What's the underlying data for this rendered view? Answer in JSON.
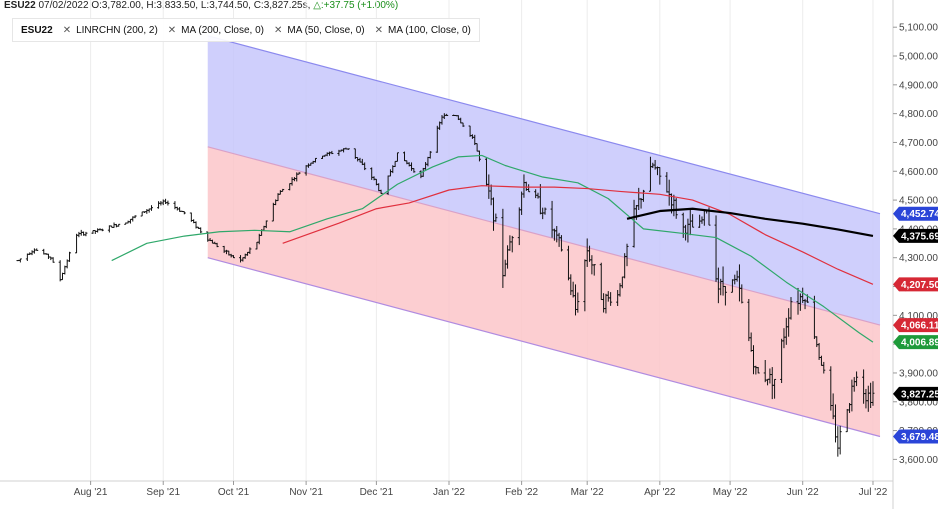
{
  "header": {
    "symbol": "ESU22",
    "date": "07/02/2022",
    "open": "O:3,782.00",
    "high": "H:3,833.50",
    "low": "L:3,744.50",
    "close": "C:3,827.25s",
    "change": "△:+37.75 (+1.00%)"
  },
  "legend": {
    "symbol": "ESU22",
    "items": [
      {
        "label": "LINRCHN (200, 2)",
        "close_icon": "close-icon"
      },
      {
        "label": "MA (200, Close, 0)",
        "close_icon": "close-icon"
      },
      {
        "label": "MA (50, Close, 0)",
        "close_icon": "close-icon"
      },
      {
        "label": "MA (100, Close, 0)",
        "close_icon": "close-icon"
      }
    ]
  },
  "chart_data": {
    "type": "ohlc-bar",
    "title": "",
    "xlabel": "",
    "ylabel": "",
    "ylim": [
      3525,
      5125
    ],
    "yticks": [
      3600,
      3700,
      3800,
      3900,
      4000,
      4100,
      4200,
      4300,
      4400,
      4500,
      4600,
      4700,
      4800,
      4900,
      5000,
      5100
    ],
    "ytick_labels": [
      "3,600.00",
      "3,700.00",
      "3,800.00",
      "3,900.00",
      "4,000.00",
      "4,100.00",
      "4,200.00",
      "4,300.00",
      "4,400.00",
      "4,500.00",
      "4,600.00",
      "4,700.00",
      "4,800.00",
      "4,900.00",
      "5,000.00",
      "5,100.00"
    ],
    "x_range": [
      "2021-07-01",
      "2022-07-04"
    ],
    "xticks": [
      {
        "date": "2021-08-01",
        "label": "Aug '21"
      },
      {
        "date": "2021-09-01",
        "label": "Sep '21"
      },
      {
        "date": "2021-10-01",
        "label": "Oct '21"
      },
      {
        "date": "2021-11-01",
        "label": "Nov '21"
      },
      {
        "date": "2021-12-01",
        "label": "Dec '21"
      },
      {
        "date": "2022-01-01",
        "label": "Jan '22"
      },
      {
        "date": "2022-02-01",
        "label": "Feb '22"
      },
      {
        "date": "2022-03-01",
        "label": "Mar '22"
      },
      {
        "date": "2022-04-01",
        "label": "Apr '22"
      },
      {
        "date": "2022-05-01",
        "label": "May '22"
      },
      {
        "date": "2022-06-01",
        "label": "Jun '22"
      },
      {
        "date": "2022-07-01",
        "label": "Jul '22"
      }
    ],
    "price_path": [
      [
        "2021-07-01",
        4290
      ],
      [
        "2021-07-08",
        4330
      ],
      [
        "2021-07-15",
        4300
      ],
      [
        "2021-07-19",
        4225
      ],
      [
        "2021-07-26",
        4380
      ],
      [
        "2021-08-05",
        4395
      ],
      [
        "2021-08-16",
        4425
      ],
      [
        "2021-08-26",
        4470
      ],
      [
        "2021-09-02",
        4495
      ],
      [
        "2021-09-10",
        4455
      ],
      [
        "2021-09-20",
        4365
      ],
      [
        "2021-09-30",
        4305
      ],
      [
        "2021-10-04",
        4290
      ],
      [
        "2021-10-11",
        4355
      ],
      [
        "2021-10-20",
        4520
      ],
      [
        "2021-11-01",
        4620
      ],
      [
        "2021-11-08",
        4655
      ],
      [
        "2021-11-19",
        4680
      ],
      [
        "2021-11-30",
        4570
      ],
      [
        "2021-12-03",
        4520
      ],
      [
        "2021-12-10",
        4660
      ],
      [
        "2021-12-20",
        4580
      ],
      [
        "2021-12-29",
        4790
      ],
      [
        "2022-01-04",
        4795
      ],
      [
        "2022-01-12",
        4700
      ],
      [
        "2022-01-20",
        4460
      ],
      [
        "2022-01-24",
        4250
      ],
      [
        "2022-02-02",
        4560
      ],
      [
        "2022-02-10",
        4470
      ],
      [
        "2022-02-18",
        4330
      ],
      [
        "2022-02-24",
        4120
      ],
      [
        "2022-03-01",
        4330
      ],
      [
        "2022-03-08",
        4150
      ],
      [
        "2022-03-14",
        4170
      ],
      [
        "2022-03-21",
        4450
      ],
      [
        "2022-03-29",
        4620
      ],
      [
        "2022-04-05",
        4520
      ],
      [
        "2022-04-11",
        4400
      ],
      [
        "2022-04-18",
        4410
      ],
      [
        "2022-04-21",
        4470
      ],
      [
        "2022-04-26",
        4200
      ],
      [
        "2022-05-04",
        4220
      ],
      [
        "2022-05-12",
        3900
      ],
      [
        "2022-05-20",
        3880
      ],
      [
        "2022-05-27",
        4150
      ],
      [
        "2022-06-02",
        4170
      ],
      [
        "2022-06-10",
        3900
      ],
      [
        "2022-06-16",
        3650
      ],
      [
        "2022-06-24",
        3910
      ],
      [
        "2022-06-28",
        3820
      ],
      [
        "2022-07-01",
        3827
      ]
    ],
    "ma200_path": [
      [
        "2022-03-18",
        4435
      ],
      [
        "2022-04-01",
        4462
      ],
      [
        "2022-04-15",
        4470
      ],
      [
        "2022-05-01",
        4455
      ],
      [
        "2022-05-16",
        4435
      ],
      [
        "2022-06-01",
        4418
      ],
      [
        "2022-06-16",
        4398
      ],
      [
        "2022-07-01",
        4375.69
      ]
    ],
    "ma100_path": [
      [
        "2021-10-22",
        4350
      ],
      [
        "2021-11-15",
        4420
      ],
      [
        "2021-12-01",
        4470
      ],
      [
        "2021-12-15",
        4490
      ],
      [
        "2022-01-01",
        4535
      ],
      [
        "2022-01-15",
        4550
      ],
      [
        "2022-02-01",
        4545
      ],
      [
        "2022-02-15",
        4545
      ],
      [
        "2022-03-01",
        4540
      ],
      [
        "2022-03-15",
        4530
      ],
      [
        "2022-04-01",
        4520
      ],
      [
        "2022-04-15",
        4500
      ],
      [
        "2022-05-01",
        4450
      ],
      [
        "2022-05-16",
        4380
      ],
      [
        "2022-06-01",
        4320
      ],
      [
        "2022-06-16",
        4260
      ],
      [
        "2022-07-01",
        4207.5
      ]
    ],
    "ma50_path": [
      [
        "2021-08-10",
        4290
      ],
      [
        "2021-08-25",
        4350
      ],
      [
        "2021-09-10",
        4375
      ],
      [
        "2021-09-25",
        4390
      ],
      [
        "2021-10-10",
        4395
      ],
      [
        "2021-10-25",
        4390
      ],
      [
        "2021-11-10",
        4435
      ],
      [
        "2021-11-25",
        4470
      ],
      [
        "2021-12-10",
        4555
      ],
      [
        "2021-12-25",
        4615
      ],
      [
        "2022-01-05",
        4650
      ],
      [
        "2022-01-15",
        4655
      ],
      [
        "2022-01-25",
        4620
      ],
      [
        "2022-02-10",
        4580
      ],
      [
        "2022-02-25",
        4560
      ],
      [
        "2022-03-10",
        4505
      ],
      [
        "2022-03-25",
        4400
      ],
      [
        "2022-04-10",
        4385
      ],
      [
        "2022-04-25",
        4370
      ],
      [
        "2022-05-10",
        4305
      ],
      [
        "2022-05-25",
        4215
      ],
      [
        "2022-06-10",
        4130
      ],
      [
        "2022-06-25",
        4040
      ],
      [
        "2022-07-01",
        4006.89
      ]
    ],
    "channel": {
      "start": "2021-09-20",
      "end": "2022-07-04",
      "upper_start": 5070,
      "upper_end": 4452.74,
      "middle_start": 4685,
      "middle_end": 4066.11,
      "lower_start": 4300,
      "lower_end": 3679.48
    },
    "price_badges": [
      {
        "value": 4452.74,
        "label": "4,452.74",
        "color": "#2a45d8"
      },
      {
        "value": 4375.69,
        "label": "4,375.69",
        "color": "#000000"
      },
      {
        "value": 4207.5,
        "label": "4,207.50",
        "color": "#d62835"
      },
      {
        "value": 4066.11,
        "label": "4,066.11",
        "color": "#d62835"
      },
      {
        "value": 4006.89,
        "label": "4,006.89",
        "color": "#1e9a3a"
      },
      {
        "value": 3827.25,
        "label": "3,827.25",
        "color": "#000000"
      },
      {
        "value": 3679.48,
        "label": "3,679.48",
        "color": "#2a45d8"
      }
    ],
    "colors": {
      "upper_band": "#c7c7fb",
      "lower_band": "#fcc6c9",
      "upper_line": "#8b89ee",
      "middle_line": "#d9a1c8",
      "lower_line": "#b08be0",
      "ma200": "#000000",
      "ma100": "#e0303e",
      "ma50": "#2fa86a",
      "bars": "#111111"
    }
  }
}
